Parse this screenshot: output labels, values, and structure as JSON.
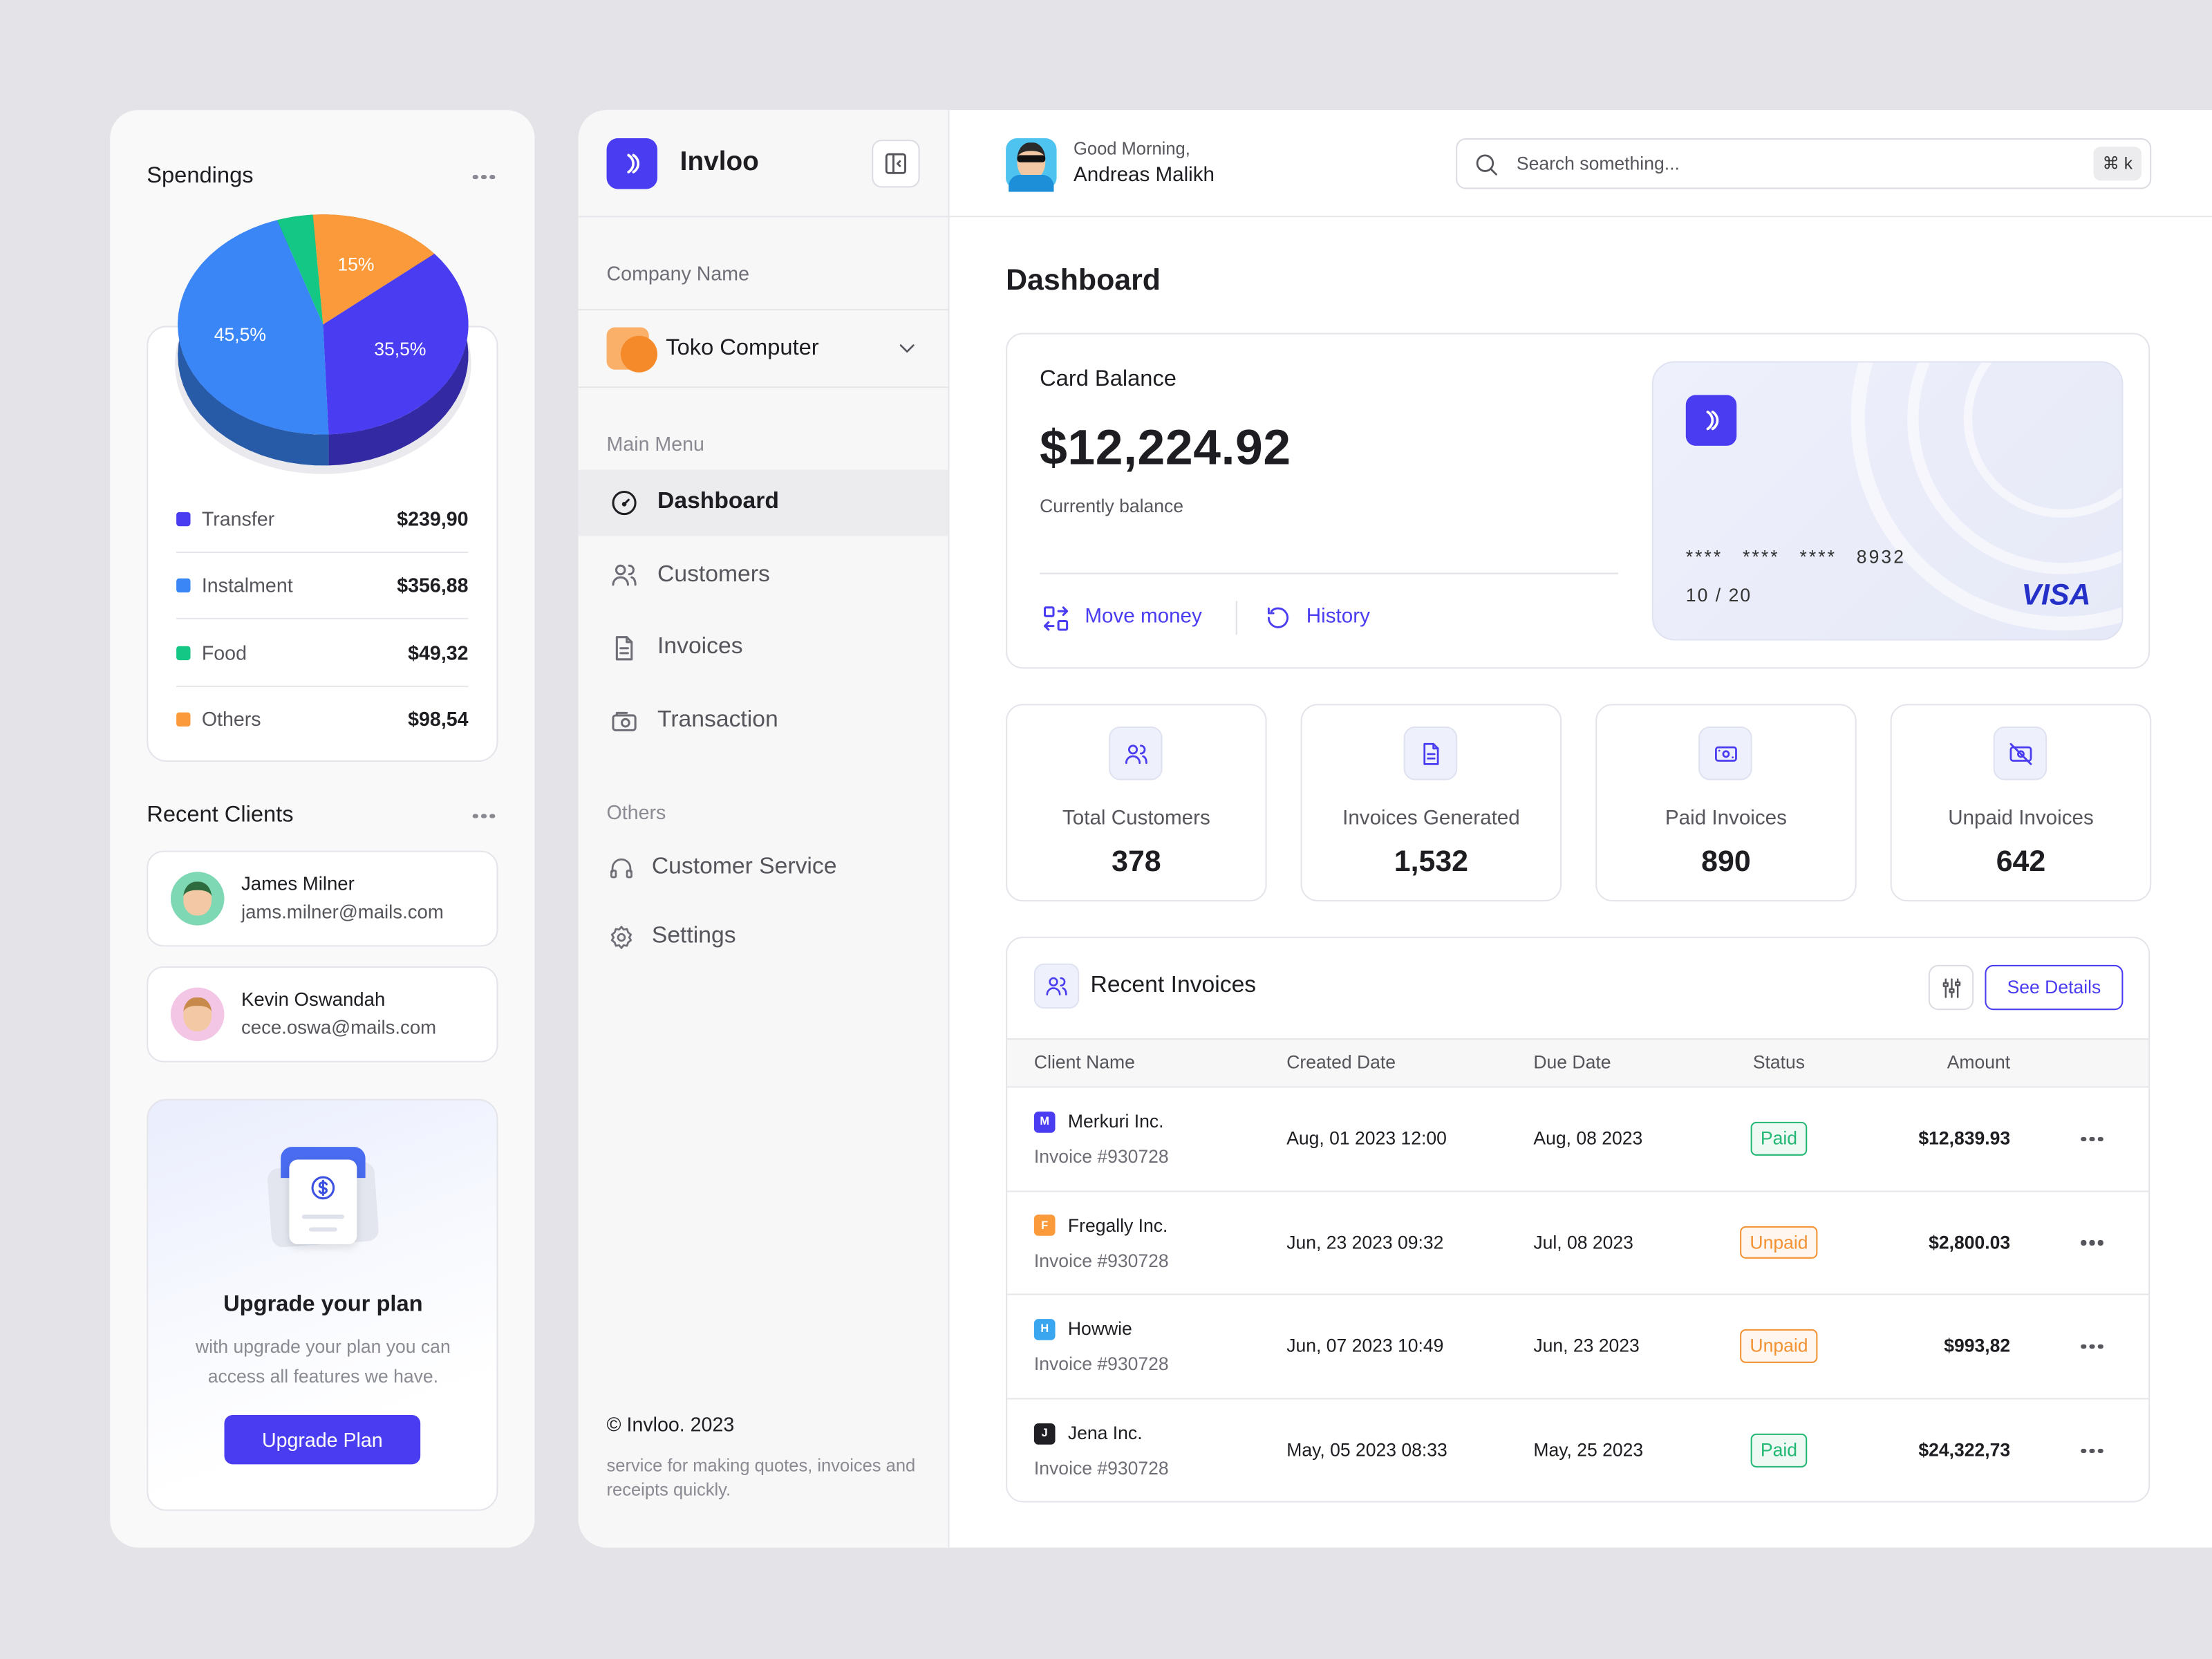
{
  "spendings": {
    "title": "Spendings",
    "items": [
      {
        "name": "Transfer",
        "amount": "$239,90",
        "color": "#4a3cf0",
        "share": 35.5,
        "share_label": "35,5%"
      },
      {
        "name": "Instalment",
        "amount": "$356,88",
        "color": "#3a86f7",
        "share": 45.5,
        "share_label": "45,5%"
      },
      {
        "name": "Food",
        "amount": "$49,32",
        "color": "#14c784",
        "share": 4
      },
      {
        "name": "Others",
        "amount": "$98,54",
        "color": "#fb9a3a",
        "share": 15,
        "share_label": "15%"
      }
    ]
  },
  "recent_clients": {
    "title": "Recent Clients",
    "clients": [
      {
        "name": "James Milner",
        "email": "jams.milner@mails.com"
      },
      {
        "name": "Kevin Oswandah",
        "email": "cece.oswa@mails.com"
      }
    ]
  },
  "upgrade": {
    "title": "Upgrade your plan",
    "text": "with upgrade your plan you can access all features we have.",
    "button": "Upgrade Plan"
  },
  "sidebar": {
    "brand": "Invloo",
    "company_label": "Company Name",
    "company": "Toko Computer",
    "main_menu_label": "Main Menu",
    "main_menu": [
      "Dashboard",
      "Customers",
      "Invoices",
      "Transaction"
    ],
    "others_label": "Others",
    "others": [
      "Customer Service",
      "Settings"
    ],
    "copyright": "© Invloo. 2023",
    "tagline": "service for making quotes, invoices and receipts quickly."
  },
  "header": {
    "greeting": "Good Morning,",
    "user": "Andreas Malikh",
    "search_placeholder": "Search something...",
    "shortcut": "⌘ k"
  },
  "dashboard": {
    "title": "Dashboard",
    "card_balance": {
      "label": "Card Balance",
      "amount": "$12,224.92",
      "sub": "Currently balance",
      "actions": [
        "Move money",
        "History"
      ],
      "card_number": "**** **** **** 8932",
      "expiry": "10 / 20",
      "brand": "VISA"
    },
    "stats": [
      {
        "label": "Total Customers",
        "value": "378"
      },
      {
        "label": "Invoices Generated",
        "value": "1,532"
      },
      {
        "label": "Paid Invoices",
        "value": "890"
      },
      {
        "label": "Unpaid Invoices",
        "value": "642"
      }
    ]
  },
  "recent_invoices": {
    "title": "Recent Invoices",
    "button": "See Details",
    "columns": [
      "Client Name",
      "Created Date",
      "Due Date",
      "Status",
      "Amount"
    ],
    "rows": [
      {
        "initial": "M",
        "color": "#4a3cf0",
        "client": "Merkuri Inc.",
        "invoice": "Invoice #930728",
        "created": "Aug, 01 2023 12:00",
        "due": "Aug, 08 2023",
        "status": "Paid",
        "status_color": "#22b874",
        "amount": "$12,839.93"
      },
      {
        "initial": "F",
        "color": "#fb9a3a",
        "client": "Fregally Inc.",
        "invoice": "Invoice #930728",
        "created": "Jun, 23 2023 09:32",
        "due": "Jul, 08 2023",
        "status": "Unpaid",
        "status_color": "#f39233",
        "amount": "$2,800.03"
      },
      {
        "initial": "H",
        "color": "#3aa6f0",
        "client": "Howwie",
        "invoice": "Invoice #930728",
        "created": "Jun, 07 2023 10:49",
        "due": "Jun, 23 2023",
        "status": "Unpaid",
        "status_color": "#f39233",
        "amount": "$993,82"
      },
      {
        "initial": "J",
        "color": "#1f1f24",
        "client": "Jena Inc.",
        "invoice": "Invoice #930728",
        "created": "May, 05 2023 08:33",
        "due": "May, 25 2023",
        "status": "Paid",
        "status_color": "#22b874",
        "amount": "$24,322,73"
      }
    ]
  }
}
